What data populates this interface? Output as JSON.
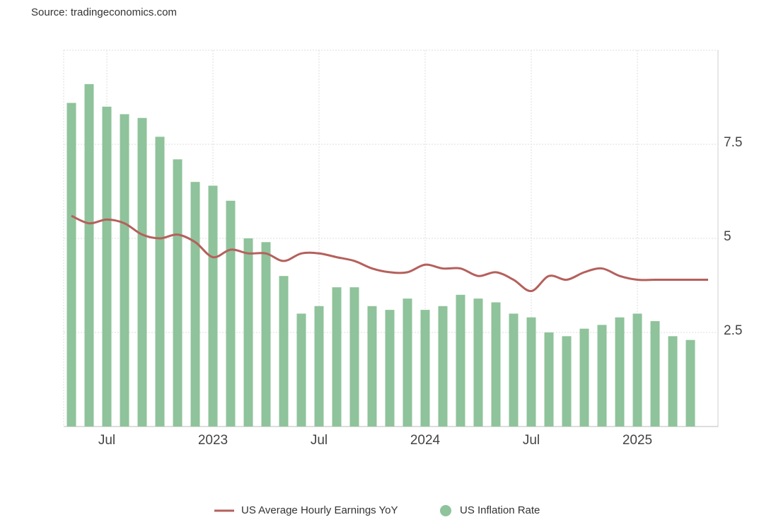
{
  "source": "Source: tradingeconomics.com",
  "chart_data": {
    "type": "bar-line",
    "categories": [
      null,
      null,
      "Jul",
      null,
      null,
      null,
      null,
      null,
      "2023",
      null,
      null,
      null,
      null,
      null,
      "Jul",
      null,
      null,
      null,
      null,
      null,
      "2024",
      null,
      null,
      null,
      null,
      null,
      "Jul",
      null,
      null,
      null,
      null,
      null,
      "2025",
      null,
      null,
      null,
      null
    ],
    "series": [
      {
        "name": "US Average Hourly Earnings YoY",
        "color": "#b5605c",
        "kind": "line",
        "values": [
          5.6,
          5.4,
          5.5,
          5.4,
          5.1,
          5.0,
          5.1,
          4.9,
          4.5,
          4.7,
          4.6,
          4.6,
          4.4,
          4.6,
          4.6,
          4.5,
          4.4,
          4.2,
          4.1,
          4.1,
          4.3,
          4.2,
          4.2,
          4.0,
          4.1,
          3.9,
          3.6,
          4.0,
          3.9,
          4.1,
          4.2,
          4.0,
          3.9,
          3.9,
          3.9,
          3.9,
          3.9
        ]
      },
      {
        "name": "US Inflation Rate",
        "color": "#8fc39b",
        "kind": "bar",
        "values": [
          8.6,
          9.1,
          8.5,
          8.3,
          8.2,
          7.7,
          7.1,
          6.5,
          6.4,
          6.0,
          5.0,
          4.9,
          4.0,
          3.0,
          3.2,
          3.7,
          3.7,
          3.2,
          3.1,
          3.4,
          3.1,
          3.2,
          3.5,
          3.4,
          3.3,
          3.0,
          2.9,
          2.5,
          2.4,
          2.6,
          2.7,
          2.9,
          3.0,
          2.8,
          2.4,
          2.3,
          null
        ]
      }
    ],
    "ylim": [
      0,
      10
    ],
    "yticks": [
      2.5,
      5,
      7.5
    ],
    "grid": true,
    "legend": "bottom"
  }
}
